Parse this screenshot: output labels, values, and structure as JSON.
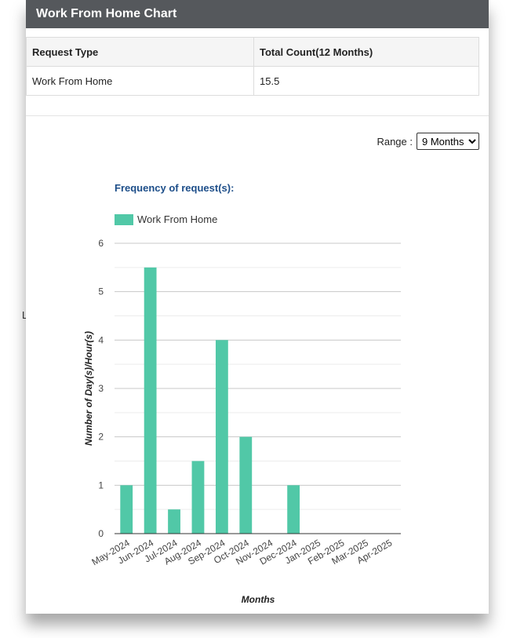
{
  "header": {
    "title": "Work From Home Chart"
  },
  "summary": {
    "columns": [
      "Request Type",
      "Total Count(12 Months)"
    ],
    "rows": [
      [
        "Work From Home",
        "15.5"
      ]
    ]
  },
  "range": {
    "label": "Range :",
    "selected": "9 Months"
  },
  "stray_text": "L",
  "chart_data": {
    "type": "bar",
    "title": "Frequency of request(s):",
    "xlabel": "Months",
    "ylabel": "Number of Day(s)/Hour(s)",
    "categories": [
      "May-2024",
      "Jun-2024",
      "Jul-2024",
      "Aug-2024",
      "Sep-2024",
      "Oct-2024",
      "Nov-2024",
      "Dec-2024",
      "Jan-2025",
      "Feb-2025",
      "Mar-2025",
      "Apr-2025"
    ],
    "series": [
      {
        "name": "Work From Home",
        "values": [
          1,
          5.5,
          0.5,
          1.5,
          4,
          2,
          0,
          1,
          0,
          0,
          0,
          0
        ]
      }
    ],
    "ylim": [
      0,
      6
    ],
    "yticks": [
      0,
      1,
      2,
      3,
      4,
      5,
      6
    ],
    "grid": true,
    "legend": "top-left",
    "bar_color": "#51c8a7"
  }
}
